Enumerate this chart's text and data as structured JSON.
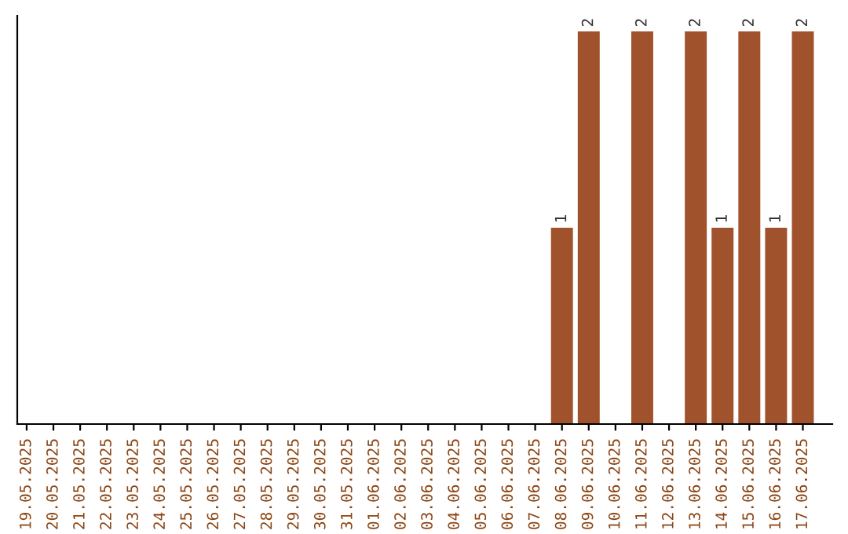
{
  "chart_data": {
    "type": "bar",
    "categories": [
      "19.05.2025",
      "20.05.2025",
      "21.05.2025",
      "22.05.2025",
      "23.05.2025",
      "24.05.2025",
      "25.05.2025",
      "26.05.2025",
      "27.05.2025",
      "28.05.2025",
      "29.05.2025",
      "30.05.2025",
      "31.05.2025",
      "01.06.2025",
      "02.06.2025",
      "03.06.2025",
      "04.06.2025",
      "05.06.2025",
      "06.06.2025",
      "07.06.2025",
      "08.06.2025",
      "09.06.2025",
      "10.06.2025",
      "11.06.2025",
      "12.06.2025",
      "13.06.2025",
      "14.06.2025",
      "15.06.2025",
      "16.06.2025",
      "17.06.2025"
    ],
    "values": [
      null,
      null,
      null,
      null,
      null,
      null,
      null,
      null,
      null,
      null,
      null,
      null,
      null,
      null,
      null,
      null,
      null,
      null,
      null,
      null,
      1,
      2,
      null,
      2,
      null,
      2,
      1,
      2,
      1,
      2
    ],
    "data_labels": true,
    "ylim": [
      0,
      2.08
    ],
    "color": "#a0522d",
    "tick_labels": "x",
    "grid": false,
    "legend": false
  }
}
